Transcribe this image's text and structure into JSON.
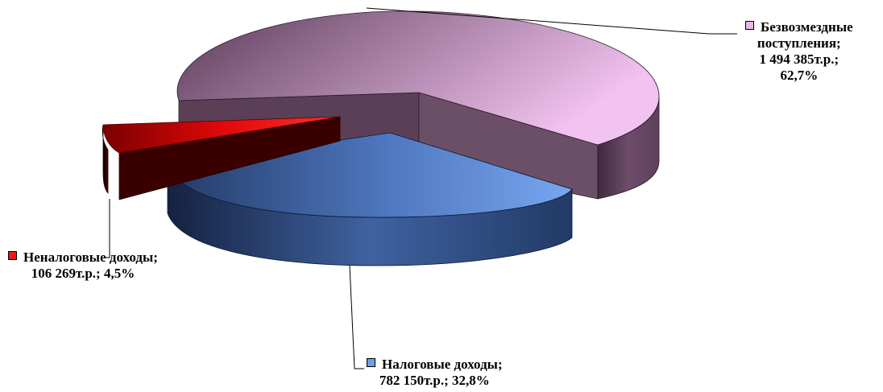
{
  "chart_data": {
    "type": "pie",
    "title": "",
    "slices": [
      {
        "name": "Безвозмездные поступления",
        "value_text": "1 494 385т.р.",
        "percent_text": "62,7%",
        "value": 1494385,
        "percent": 62.7,
        "color": "#e7b9e6",
        "dark_color": "#4a3147"
      },
      {
        "name": "Налоговые доходы",
        "value_text": "782 150т.р.",
        "percent_text": "32,8%",
        "value": 782150,
        "percent": 32.8,
        "color": "#6f9fe8",
        "dark_color": "#1c2b4a"
      },
      {
        "name": "Неналоговые доходы",
        "value_text": "106 269т.р.",
        "percent_text": "4,5%",
        "value": 106269,
        "percent": 4.5,
        "color": "#ff1111",
        "dark_color": "#1a0000"
      }
    ]
  },
  "labels": {
    "bezv": {
      "line1": "Безвозмездные",
      "line2": "поступления;",
      "line3": "1 494 385т.р.;",
      "line4": "62,7%"
    },
    "nal": {
      "line1": "Налоговые доходы;",
      "line2": "782 150т.р.; 32,8%"
    },
    "nenal": {
      "line1": "Неналоговые доходы;",
      "line2": "106 269т.р.; 4,5%"
    }
  }
}
